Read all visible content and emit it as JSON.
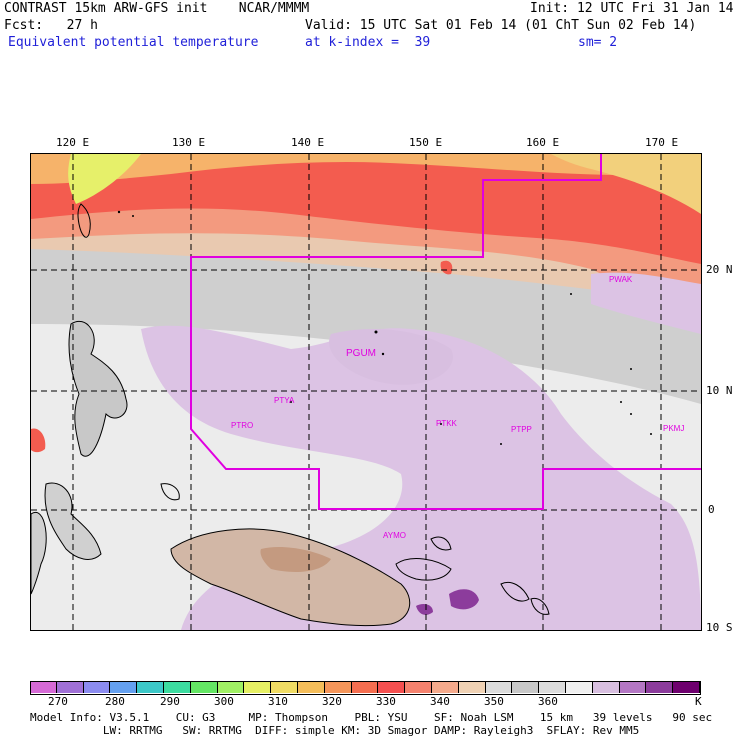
{
  "header": {
    "line1_left": "CONTRAST 15km ARW-GFS init    NCAR/MMMM",
    "line1_right": "Init: 12 UTC Fri 31 Jan 14",
    "line2_left": "Fcst:   27 h",
    "line2_right": "Valid: 15 UTC Sat 01 Feb 14 (01 ChT Sun 02 Feb 14)",
    "line3_left": "Equivalent potential temperature",
    "line3_mid": "at k-index =  39",
    "line3_right": "sm= 2"
  },
  "map": {
    "lon_labels": [
      "120 E",
      "130 E",
      "140 E",
      "150 E",
      "160 E",
      "170 E"
    ],
    "lat_labels": [
      "20 N",
      "10 N",
      "0",
      "10 S"
    ],
    "stations": [
      "PGUM",
      "PTYA",
      "PTRO",
      "PTKK",
      "PTPP",
      "PKMJ",
      "PWAK",
      "AYMO"
    ]
  },
  "colorbar": {
    "colors": [
      "#d66ad6",
      "#a070d6",
      "#8c8cf0",
      "#64a0f0",
      "#3cc8c8",
      "#3cdca0",
      "#64e664",
      "#a0f064",
      "#e6f064",
      "#f0dc64",
      "#f5be5a",
      "#f5965a",
      "#f56e50",
      "#f55050",
      "#f5826e",
      "#f5aa8c",
      "#f0d2b4",
      "#dcdcdc",
      "#c8c8c8",
      "#dcdcdc",
      "#f0f0f0",
      "#d8bfe0",
      "#b477c4",
      "#8c3c9c",
      "#6e006e"
    ],
    "labels": [
      "270",
      "280",
      "290",
      "300",
      "310",
      "320",
      "330",
      "340",
      "350",
      "360"
    ],
    "unit": "K"
  },
  "footer": {
    "line1": "Model Info: V3.5.1    CU: G3     MP: Thompson    PBL: YSU    SF: Noah LSM    15 km   39 levels   90 sec",
    "line2": "           LW: RRTMG   SW: RRTMG  DIFF: simple KM: 3D Smagor DAMP: Rayleigh3  SFLAY: Rev MM5"
  }
}
